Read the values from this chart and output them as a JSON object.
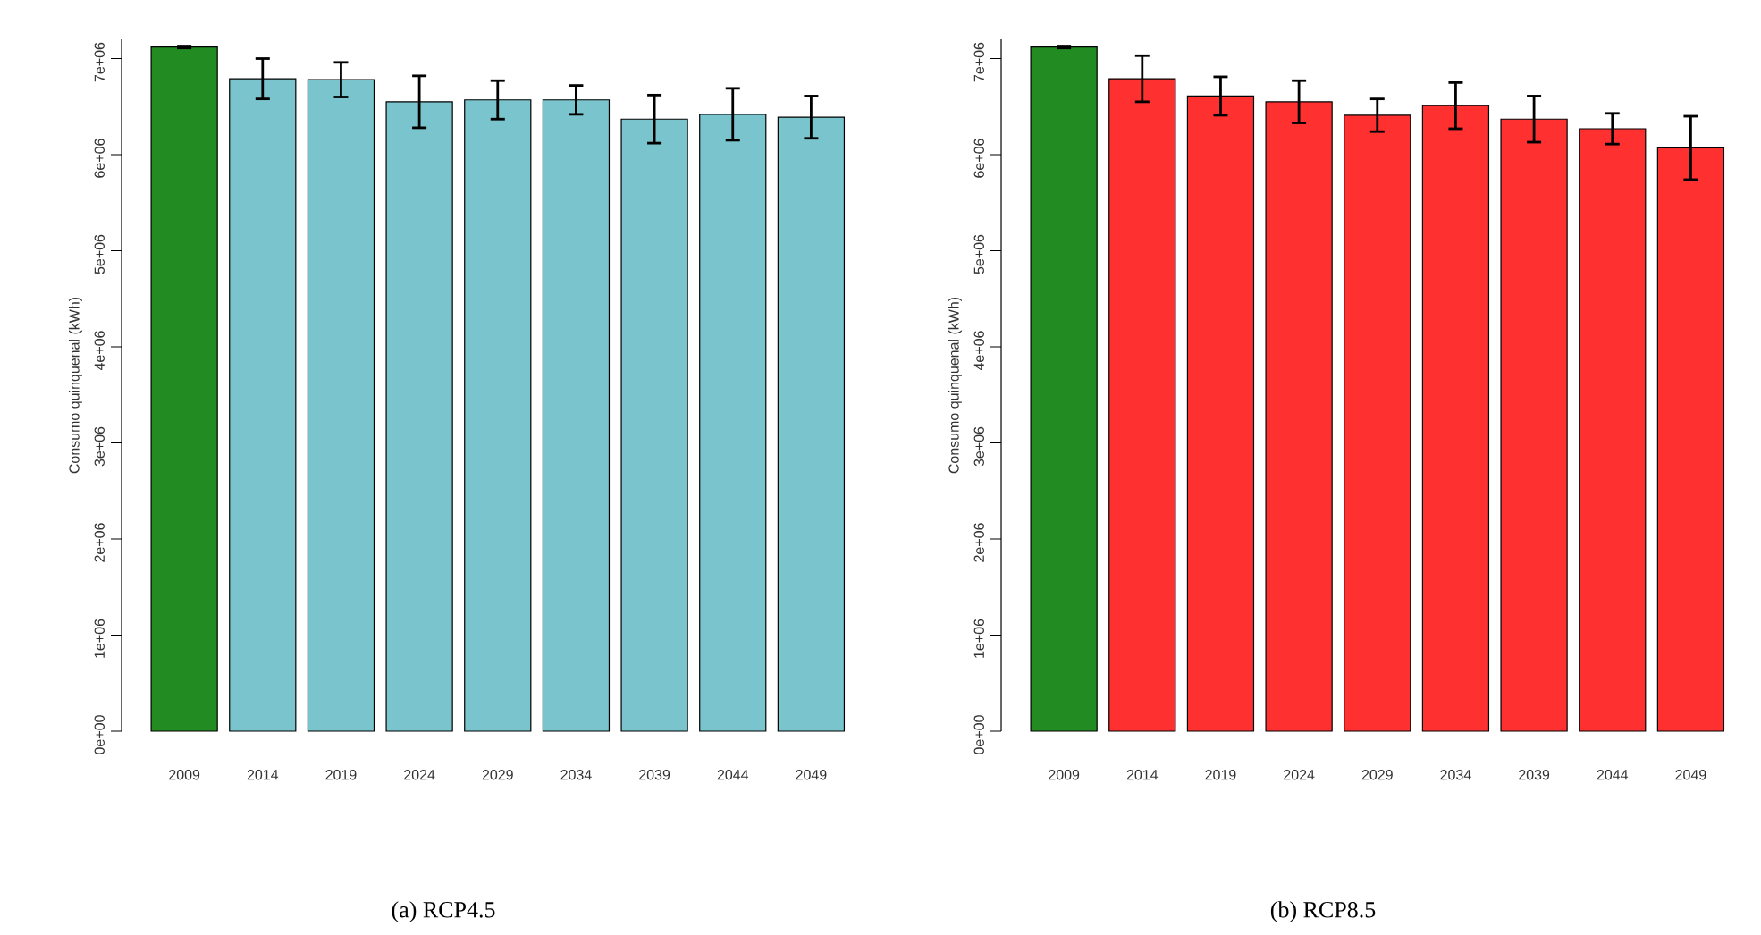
{
  "chart_data": [
    {
      "type": "bar",
      "categories": [
        "2009",
        "2014",
        "2019",
        "2024",
        "2029",
        "2034",
        "2039",
        "2044",
        "2049"
      ],
      "values": [
        7120000,
        6790000,
        6780000,
        6550000,
        6570000,
        6570000,
        6370000,
        6420000,
        6390000
      ],
      "errors": [
        10000,
        210000,
        180000,
        270000,
        200000,
        150000,
        250000,
        270000,
        220000
      ],
      "colors": [
        "#228b22",
        "#7ac5cd",
        "#7ac5cd",
        "#7ac5cd",
        "#7ac5cd",
        "#7ac5cd",
        "#7ac5cd",
        "#7ac5cd",
        "#7ac5cd"
      ],
      "ylabel": "Consumo quinquenal (kWh)",
      "ylim": [
        0,
        7200000
      ],
      "yticks": [
        {
          "value": 0,
          "label": "0e+00"
        },
        {
          "value": 1000000,
          "label": "1e+06"
        },
        {
          "value": 2000000,
          "label": "2e+06"
        },
        {
          "value": 3000000,
          "label": "3e+06"
        },
        {
          "value": 4000000,
          "label": "4e+06"
        },
        {
          "value": 5000000,
          "label": "5e+06"
        },
        {
          "value": 6000000,
          "label": "6e+06"
        },
        {
          "value": 7000000,
          "label": "7e+06"
        }
      ],
      "annotations": [
        "(a) RCP4.5"
      ]
    },
    {
      "type": "bar",
      "categories": [
        "2009",
        "2014",
        "2019",
        "2024",
        "2029",
        "2034",
        "2039",
        "2044",
        "2049"
      ],
      "values": [
        7120000,
        6790000,
        6610000,
        6550000,
        6410000,
        6510000,
        6370000,
        6270000,
        6070000
      ],
      "errors": [
        10000,
        240000,
        200000,
        220000,
        170000,
        240000,
        240000,
        160000,
        330000
      ],
      "colors": [
        "#228b22",
        "#ff3030",
        "#ff3030",
        "#ff3030",
        "#ff3030",
        "#ff3030",
        "#ff3030",
        "#ff3030",
        "#ff3030"
      ],
      "ylabel": "Consumo quinquenal (kWh)",
      "ylim": [
        0,
        7200000
      ],
      "yticks": [
        {
          "value": 0,
          "label": "0e+00"
        },
        {
          "value": 1000000,
          "label": "1e+06"
        },
        {
          "value": 2000000,
          "label": "2e+06"
        },
        {
          "value": 3000000,
          "label": "3e+06"
        },
        {
          "value": 4000000,
          "label": "4e+06"
        },
        {
          "value": 5000000,
          "label": "5e+06"
        },
        {
          "value": 6000000,
          "label": "6e+06"
        },
        {
          "value": 7000000,
          "label": "7e+06"
        }
      ],
      "annotations": [
        "(b) RCP8.5"
      ]
    }
  ]
}
